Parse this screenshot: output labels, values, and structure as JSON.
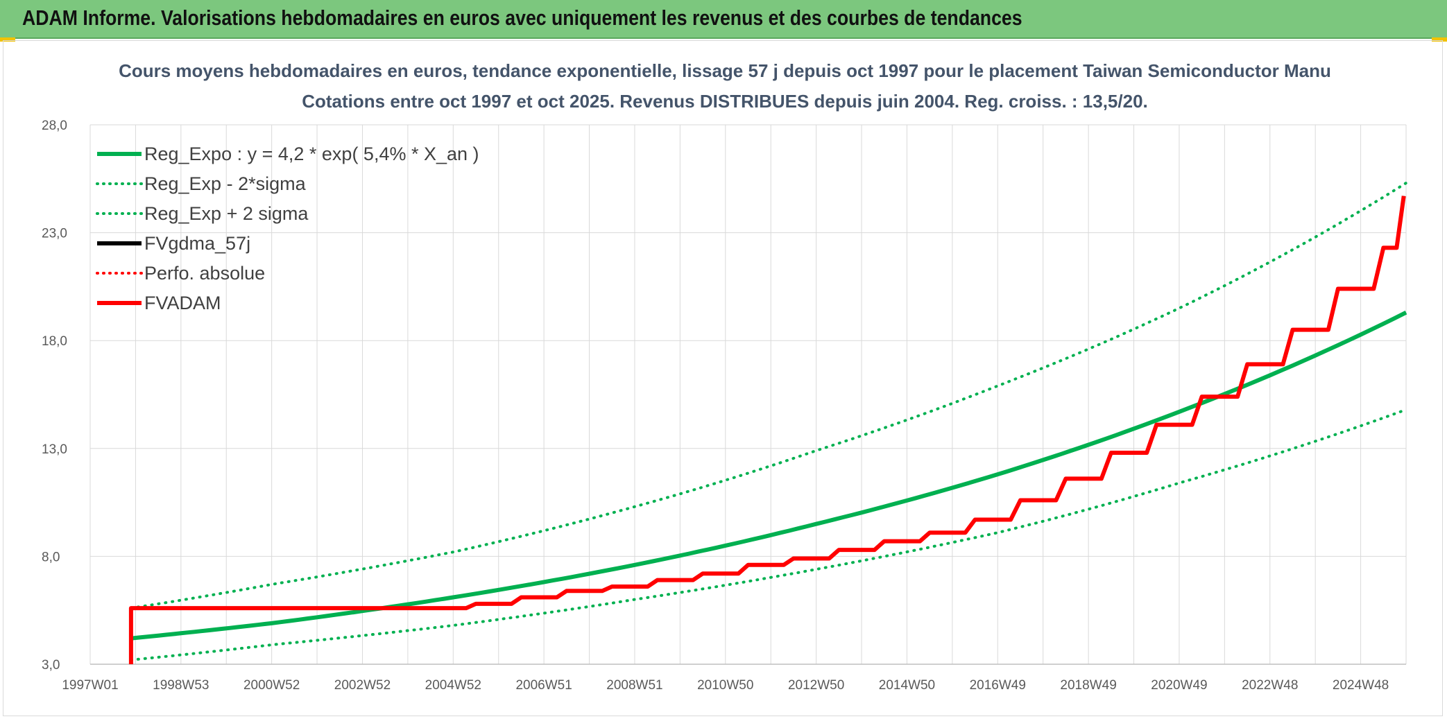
{
  "header": {
    "title": "ADAM Informe. Valorisations hebdomadaires en euros avec uniquement les revenus et des courbes de tendances"
  },
  "chart_data": {
    "type": "line",
    "title": "Cours moyens hebdomadaires en euros, tendance exponentielle, lissage 57 j depuis oct 1997 pour le placement Taiwan Semiconductor Manu",
    "subtitle": "Cotations entre oct 1997 et oct 2025. Revenus DISTRIBUES depuis juin 2004. Reg. croiss. : 13,5/20.",
    "ylim": [
      3,
      28
    ],
    "y_ticks": [
      "3,0",
      "8,0",
      "13,0",
      "18,0",
      "23,0",
      "28,0"
    ],
    "x_range": [
      1997.0,
      2026.0
    ],
    "x_ticks": [
      {
        "label": "1997W01",
        "x": 1997.0
      },
      {
        "label": "1998W53",
        "x": 1999.0
      },
      {
        "label": "2000W52",
        "x": 2001.0
      },
      {
        "label": "2002W52",
        "x": 2003.0
      },
      {
        "label": "2004W52",
        "x": 2005.0
      },
      {
        "label": "2006W51",
        "x": 2007.0
      },
      {
        "label": "2008W51",
        "x": 2009.0
      },
      {
        "label": "2010W50",
        "x": 2011.0
      },
      {
        "label": "2012W50",
        "x": 2013.0
      },
      {
        "label": "2014W50",
        "x": 2015.0
      },
      {
        "label": "2016W49",
        "x": 2017.0
      },
      {
        "label": "2018W49",
        "x": 2019.0
      },
      {
        "label": "2020W49",
        "x": 2021.0
      },
      {
        "label": "2022W48",
        "x": 2023.0
      },
      {
        "label": "2024W48",
        "x": 2025.0
      }
    ],
    "grid": true,
    "legend_position": "top-left",
    "series": [
      {
        "name": "Reg_Expo : y = 4,2 * exp( 5,4% *  X_an )",
        "color": "#00b050",
        "style": "solid",
        "width": 6,
        "x": [
          1997.9,
          2001.0,
          2005.0,
          2009.0,
          2013.0,
          2017.0,
          2021.0,
          2026.0
        ],
        "values": [
          4.2,
          4.9,
          6.1,
          7.6,
          9.5,
          11.8,
          14.7,
          19.3
        ]
      },
      {
        "name": "Reg_Exp - 2*sigma",
        "color": "#00b050",
        "style": "dotted",
        "width": 4,
        "x": [
          1997.9,
          2001.0,
          2005.0,
          2009.0,
          2013.0,
          2017.0,
          2021.0,
          2026.0
        ],
        "values": [
          3.2,
          3.9,
          4.8,
          6.0,
          7.4,
          9.1,
          11.4,
          14.8
        ]
      },
      {
        "name": "Reg_Exp + 2 sigma",
        "color": "#00b050",
        "style": "dotted",
        "width": 4,
        "x": [
          1997.9,
          2001.0,
          2005.0,
          2009.0,
          2013.0,
          2017.0,
          2021.0,
          2026.0
        ],
        "values": [
          5.6,
          6.7,
          8.2,
          10.3,
          12.9,
          15.9,
          19.5,
          25.3
        ]
      },
      {
        "name": "FVgdma_57j",
        "color": "#000000",
        "style": "solid",
        "width": 5,
        "x": [
          1997.9,
          1997.9,
          2004.5,
          2005.5,
          2006.5,
          2007.5,
          2008.5,
          2009.5,
          2010.5,
          2011.5,
          2012.5,
          2013.5,
          2014.5,
          2015.5,
          2016.5,
          2017.5,
          2018.5,
          2019.5,
          2020.5,
          2021.5,
          2022.5,
          2023.5,
          2024.5,
          2025.5,
          2025.95
        ],
        "values": [
          3.0,
          5.6,
          5.6,
          5.8,
          6.1,
          6.4,
          6.6,
          6.9,
          7.2,
          7.6,
          7.9,
          8.3,
          8.7,
          9.1,
          9.7,
          10.6,
          11.6,
          12.8,
          14.1,
          15.4,
          16.9,
          18.5,
          20.4,
          22.3,
          24.7
        ]
      },
      {
        "name": "Perfo. absolue",
        "color": "#ff0000",
        "style": "dotted",
        "width": 3,
        "x": [],
        "values": []
      },
      {
        "name": "FVADAM",
        "color": "#ff0000",
        "style": "solid",
        "width": 6,
        "x": [
          1997.9,
          1997.9,
          2004.5,
          2005.5,
          2006.5,
          2007.5,
          2008.5,
          2009.5,
          2010.5,
          2011.5,
          2012.5,
          2013.5,
          2014.5,
          2015.5,
          2016.5,
          2017.5,
          2018.5,
          2019.5,
          2020.5,
          2021.5,
          2022.5,
          2023.5,
          2024.5,
          2025.5,
          2025.95
        ],
        "values": [
          3.0,
          5.6,
          5.6,
          5.8,
          6.1,
          6.4,
          6.6,
          6.9,
          7.2,
          7.6,
          7.9,
          8.3,
          8.7,
          9.1,
          9.7,
          10.6,
          11.6,
          12.8,
          14.1,
          15.4,
          16.9,
          18.5,
          20.4,
          22.3,
          24.7
        ]
      }
    ]
  }
}
